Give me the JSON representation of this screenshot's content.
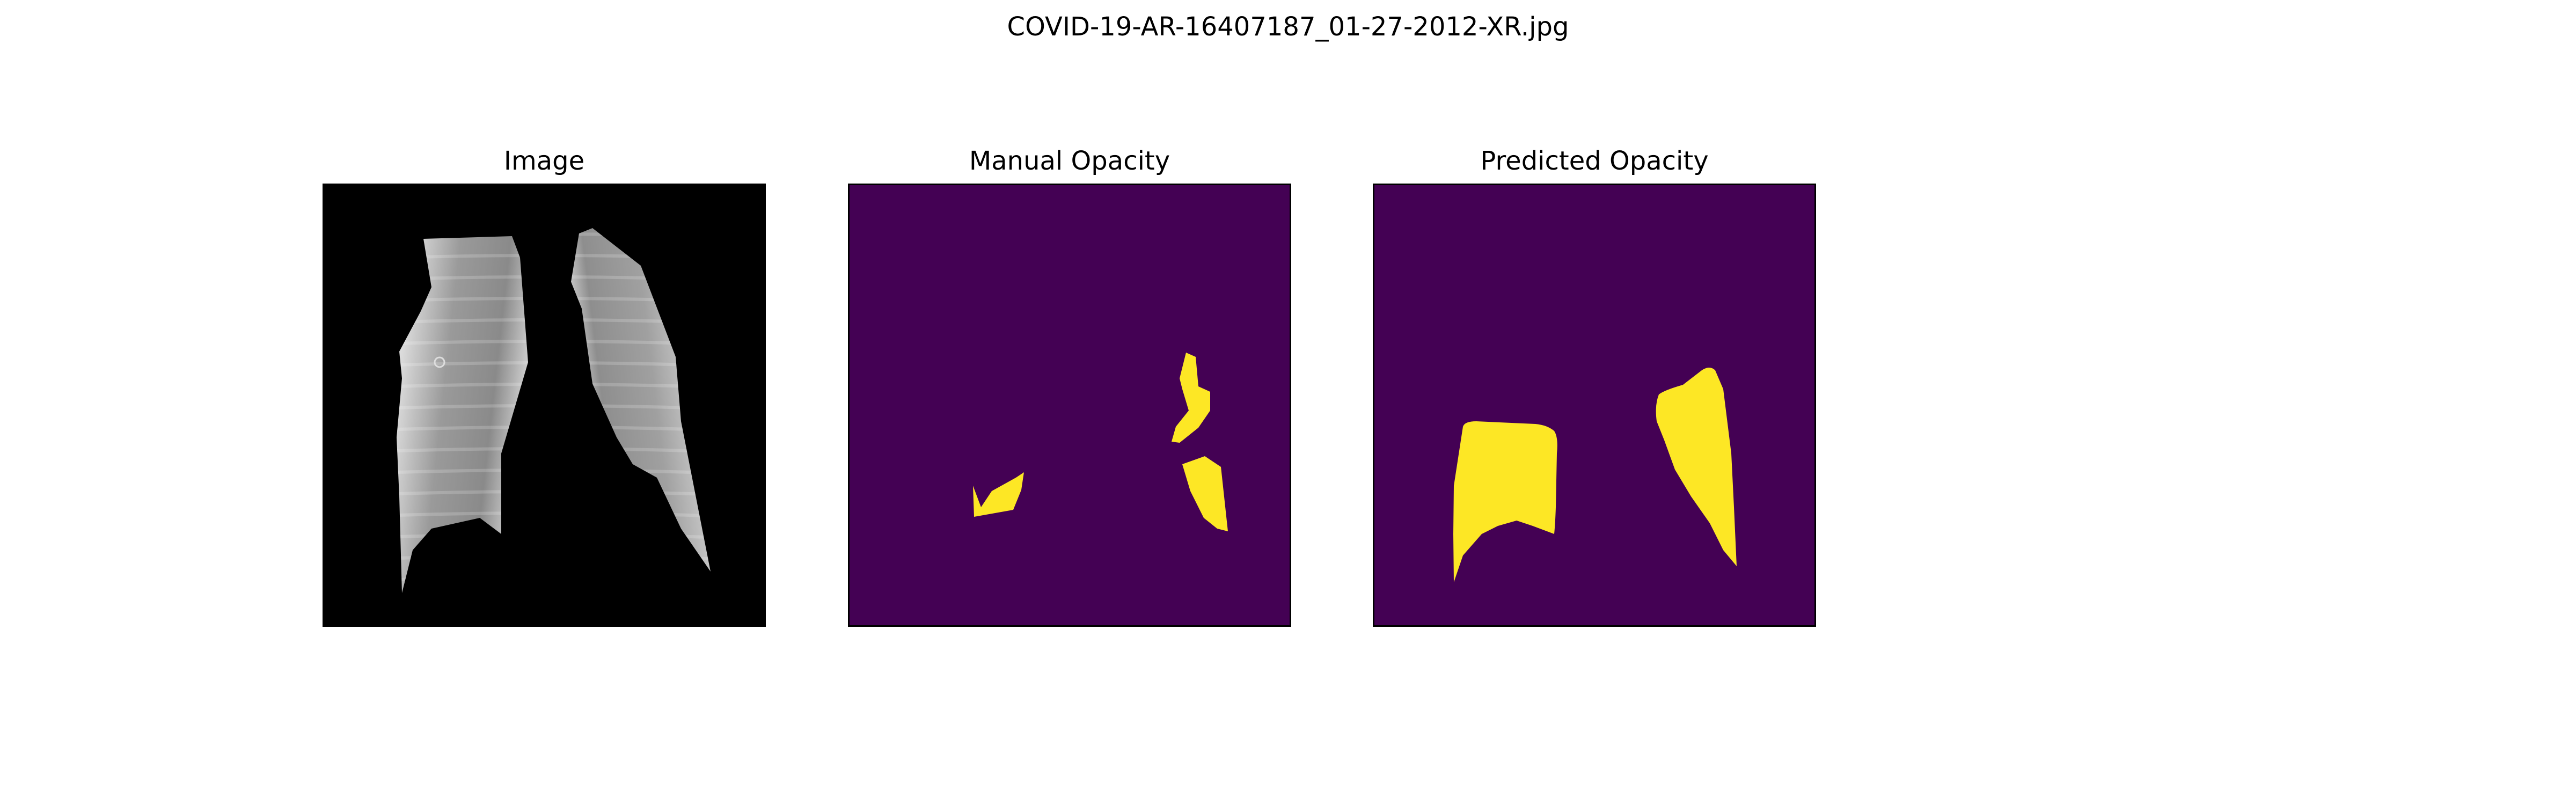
{
  "figure_title": "COVID-19-AR-16407187_01-27-2012-XR.jpg",
  "panels": [
    {
      "title": "Image"
    },
    {
      "title": "Manual Opacity"
    },
    {
      "title": "Predicted Opacity"
    }
  ],
  "colors": {
    "mask_background": "#440154",
    "mask_foreground": "#fde725",
    "xray_background": "#000000"
  }
}
